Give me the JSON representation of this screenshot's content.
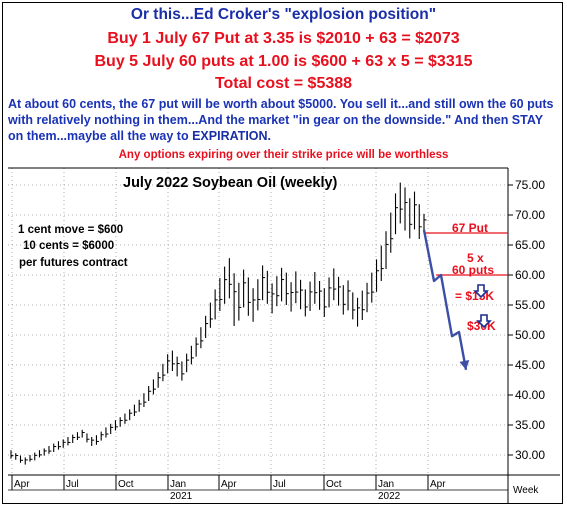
{
  "header": {
    "line1": "Or this...Ed Croker's \"explosion position\"",
    "line2": "Buy 1 July 67 Put at 3.35 is $2010 + 63 = $2073",
    "line3": "Buy 5 July 60 puts at 1.00 is $600 + 63 x 5 = $3315",
    "line4": "Total cost = $5388",
    "note_a": "At about 60 cents, the 67 put will be worth about $5000. You sell it...and still own the 60 puts with relatively nothing in them...And the market ",
    "note_quote": "\"in gear on the downside.\"",
    "note_b": " And then STAY on them...maybe all the way to ",
    "note_expiration": "EXPIRATION.",
    "warning": "Any options expiring over their strike price will be worthless"
  },
  "colors": {
    "title_blue": "#1a2ea8",
    "red": "#e8101e",
    "note_blue": "#1a33b5",
    "arrow_blue": "#3c4fa6",
    "arrow_dark": "#1c2f8f"
  },
  "chart_data": {
    "type": "ohlc",
    "title": "July 2022 Soybean Oil (weekly)",
    "y_ticks": [
      "75.00",
      "70.00",
      "65.00",
      "60.00",
      "55.00",
      "50.00",
      "45.00",
      "40.00",
      "35.00",
      "30.00"
    ],
    "y_tick_values": [
      75,
      70,
      65,
      60,
      55,
      50,
      45,
      40,
      35,
      30
    ],
    "ylim": [
      27,
      78
    ],
    "x_ticks": [
      "Apr",
      "Jul",
      "Oct",
      "Jan",
      "Apr",
      "Jul",
      "Oct",
      "Jan",
      "Apr"
    ],
    "x_years": [
      "2021",
      "2022"
    ],
    "x_unit": "Week",
    "grid": "dotted",
    "info_lines": [
      "1 cent move = $600",
      "10 cents = $6000",
      "per futures contract"
    ],
    "weekly_bars": [
      [
        30.8,
        29.4
      ],
      [
        30.3,
        29.2
      ],
      [
        29.9,
        28.7
      ],
      [
        29.6,
        28.4
      ],
      [
        30.0,
        28.9
      ],
      [
        30.4,
        29.1
      ],
      [
        30.8,
        29.6
      ],
      [
        31.1,
        29.9
      ],
      [
        31.5,
        30.2
      ],
      [
        31.9,
        30.5
      ],
      [
        32.3,
        30.9
      ],
      [
        32.6,
        31.2
      ],
      [
        33.0,
        31.6
      ],
      [
        33.4,
        32.0
      ],
      [
        33.8,
        32.5
      ],
      [
        34.2,
        32.9
      ],
      [
        33.6,
        32.1
      ],
      [
        33.0,
        31.5
      ],
      [
        33.3,
        31.7
      ],
      [
        33.9,
        32.4
      ],
      [
        34.6,
        32.9
      ],
      [
        35.2,
        33.5
      ],
      [
        35.8,
        34.1
      ],
      [
        36.3,
        34.7
      ],
      [
        36.9,
        35.2
      ],
      [
        37.6,
        35.8
      ],
      [
        38.4,
        36.5
      ],
      [
        39.2,
        37.2
      ],
      [
        40.3,
        38.0
      ],
      [
        41.5,
        39.0
      ],
      [
        42.6,
        40.1
      ],
      [
        43.8,
        41.2
      ],
      [
        45.2,
        42.3
      ],
      [
        46.8,
        43.6
      ],
      [
        47.4,
        44.0
      ],
      [
        46.4,
        43.1
      ],
      [
        45.6,
        42.4
      ],
      [
        46.9,
        43.8
      ],
      [
        48.2,
        45.1
      ],
      [
        49.6,
        46.4
      ],
      [
        51.3,
        47.8
      ],
      [
        53.2,
        49.5
      ],
      [
        55.4,
        51.2
      ],
      [
        57.6,
        52.6
      ],
      [
        59.5,
        54.0
      ],
      [
        61.4,
        55.2
      ],
      [
        62.8,
        56.1
      ],
      [
        60.3,
        51.5
      ],
      [
        58.7,
        52.4
      ],
      [
        60.9,
        54.6
      ],
      [
        59.6,
        53.2
      ],
      [
        57.8,
        52.2
      ],
      [
        59.3,
        54.1
      ],
      [
        61.6,
        55.8
      ],
      [
        60.7,
        55.2
      ],
      [
        58.6,
        53.6
      ],
      [
        59.8,
        54.8
      ],
      [
        61.2,
        55.6
      ],
      [
        60.4,
        55.0
      ],
      [
        58.8,
        53.9
      ],
      [
        60.6,
        55.3
      ],
      [
        59.2,
        54.3
      ],
      [
        57.6,
        53.1
      ],
      [
        58.9,
        54.0
      ],
      [
        60.5,
        55.2
      ],
      [
        59.0,
        54.2
      ],
      [
        57.8,
        53.0
      ],
      [
        59.6,
        54.6
      ],
      [
        61.1,
        55.8
      ],
      [
        59.7,
        54.9
      ],
      [
        58.3,
        53.4
      ],
      [
        59.1,
        54.1
      ],
      [
        57.1,
        52.6
      ],
      [
        56.2,
        51.4
      ],
      [
        57.4,
        52.5
      ],
      [
        58.7,
        53.8
      ],
      [
        60.4,
        55.4
      ],
      [
        62.6,
        57.2
      ],
      [
        64.9,
        59.0
      ],
      [
        67.3,
        61.0
      ],
      [
        70.4,
        63.7
      ],
      [
        73.6,
        66.8
      ],
      [
        75.4,
        68.6
      ],
      [
        74.6,
        67.4
      ],
      [
        72.8,
        66.1
      ],
      [
        73.9,
        67.6
      ],
      [
        71.8,
        66.0
      ],
      [
        70.2,
        67.3
      ]
    ],
    "annotations": {
      "put67_label": "67 Put",
      "put67_level": 67,
      "put60_count": "5 x",
      "put60_label": "60 puts",
      "put60_level": 60,
      "gain1": "= $15K",
      "gain1_level": 56.5,
      "gain2": "$30K",
      "gain2_level": 51.5,
      "projection": [
        [
          67.5,
          0
        ],
        [
          59.0,
          1
        ],
        [
          60.0,
          2
        ],
        [
          49.8,
          3
        ],
        [
          50.5,
          4
        ],
        [
          44.2,
          5
        ]
      ]
    }
  }
}
